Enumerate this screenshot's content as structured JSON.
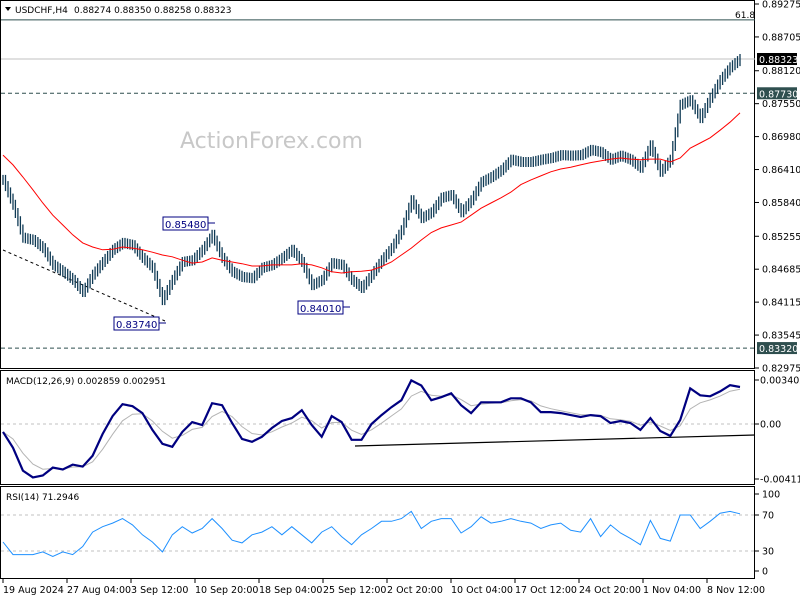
{
  "header": {
    "symbol": "USDCHF,H4",
    "ohlc": "0.88274 0.88350 0.88258 0.88323",
    "dropdown_icon": "triangle-down-icon"
  },
  "watermark": "ActionForex.com",
  "colors": {
    "bars": "#0f3a55",
    "moving_average": "#ff0000",
    "macd_main": "#000080",
    "macd_signal": "#b4b4b4",
    "rsi": "#1e90ff",
    "label_dark": "#2f4f4f",
    "label_current": "#000000"
  },
  "chart_data": [
    {
      "type": "ohlc",
      "title": "USDCHF,H4",
      "x_tick_labels": [
        "19 Aug 2024",
        "27 Aug 04:00",
        "3 Sep 12:00",
        "10 Sep 20:00",
        "18 Sep 04:00",
        "25 Sep 12:00",
        "2 Oct 20:00",
        "10 Oct 04:00",
        "17 Oct 12:00",
        "24 Oct 20:00",
        "1 Nov 04:00",
        "8 Nov 12:00"
      ],
      "y_tick_labels": [
        "0.89275",
        "0.88705",
        "0.88120",
        "0.87550",
        "0.86980",
        "0.86410",
        "0.85840",
        "0.85255",
        "0.84685",
        "0.84115",
        "0.83545",
        "0.82975"
      ],
      "ylim": [
        0.82975,
        0.89275
      ],
      "close": [
        0.8623,
        0.858,
        0.8523,
        0.8519,
        0.8505,
        0.8476,
        0.8464,
        0.845,
        0.8429,
        0.8459,
        0.8481,
        0.8502,
        0.8514,
        0.851,
        0.8488,
        0.8471,
        0.8415,
        0.845,
        0.8481,
        0.8484,
        0.8502,
        0.8528,
        0.8488,
        0.8464,
        0.8455,
        0.8453,
        0.8471,
        0.8476,
        0.8488,
        0.8502,
        0.8481,
        0.8441,
        0.845,
        0.8479,
        0.8476,
        0.845,
        0.8436,
        0.8459,
        0.8484,
        0.8505,
        0.8536,
        0.8588,
        0.8557,
        0.8567,
        0.8592,
        0.8597,
        0.8567,
        0.8588,
        0.8619,
        0.8628,
        0.864,
        0.8658,
        0.8654,
        0.8654,
        0.8658,
        0.8661,
        0.8666,
        0.8665,
        0.8666,
        0.8675,
        0.8671,
        0.8658,
        0.8665,
        0.8658,
        0.8644,
        0.8683,
        0.8637,
        0.8658,
        0.8753,
        0.8761,
        0.873,
        0.8765,
        0.8796,
        0.8818,
        0.88323
      ],
      "moving_average": [
        0.8666,
        0.8649,
        0.8628,
        0.8606,
        0.8583,
        0.8562,
        0.8545,
        0.8528,
        0.8514,
        0.8507,
        0.8502,
        0.8503,
        0.8507,
        0.8505,
        0.8502,
        0.8498,
        0.8493,
        0.849,
        0.8484,
        0.8479,
        0.8481,
        0.8488,
        0.8484,
        0.8481,
        0.8478,
        0.8474,
        0.8474,
        0.8476,
        0.8476,
        0.8476,
        0.8478,
        0.8476,
        0.8471,
        0.8464,
        0.8462,
        0.8464,
        0.8465,
        0.8467,
        0.8473,
        0.8481,
        0.8493,
        0.8505,
        0.8519,
        0.8532,
        0.854,
        0.8545,
        0.855,
        0.8562,
        0.8574,
        0.8583,
        0.8592,
        0.8602,
        0.8615,
        0.8623,
        0.863,
        0.8637,
        0.8642,
        0.8645,
        0.8649,
        0.8653,
        0.8656,
        0.8659,
        0.8661,
        0.8659,
        0.8658,
        0.8659,
        0.8659,
        0.8654,
        0.8661,
        0.8678,
        0.8687,
        0.8696,
        0.8709,
        0.8723,
        0.8739
      ],
      "price_labels": {
        "current": "0.88323",
        "resistance": "0.87730",
        "support": "0.83320",
        "fib": "61.8"
      },
      "levels": {
        "current": 0.88323,
        "resistance": 0.8773,
        "support": 0.8332,
        "fib": 0.89
      },
      "annotations": [
        {
          "text": "0.85480",
          "value": 0.8548
        },
        {
          "text": "0.83740",
          "value": 0.8374
        },
        {
          "text": "0.84010",
          "value": 0.8401
        }
      ]
    },
    {
      "type": "line",
      "title": "MACD(12,26,9) 0.002859 0.002951",
      "y_tick_labels": [
        "0.003402",
        "0.00",
        "-0.00411"
      ],
      "ylim": [
        -0.00411,
        0.0041
      ],
      "macd": [
        -0.00061,
        -0.00184,
        -0.0036,
        -0.00413,
        -0.00398,
        -0.00337,
        -0.00352,
        -0.00314,
        -0.00329,
        -0.00245,
        -0.00077,
        0.00061,
        0.00153,
        0.00138,
        0.00084,
        -0.00046,
        -0.00153,
        -0.00176,
        -0.00061,
        0.00015,
        -8e-05,
        0.00161,
        0.00145,
        8e-05,
        -0.00115,
        -0.00138,
        -0.00099,
        -0.00031,
        0.00023,
        0.00046,
        0.00107,
        -8e-05,
        -0.00099,
        0.00061,
        0.00015,
        -0.00122,
        -0.00122,
        0,
        0.00069,
        0.0013,
        0.00184,
        0.00337,
        0.00298,
        0.00184,
        0.00207,
        0.00237,
        0.00145,
        0.00084,
        0.00168,
        0.00168,
        0.00168,
        0.00199,
        0.00199,
        0.00168,
        0.00092,
        0.00092,
        0.00084,
        0.00069,
        0.00054,
        0.00069,
        0.00061,
        8e-05,
        0.00023,
        8e-05,
        -0.00046,
        0.00046,
        -0.00054,
        -0.00092,
        0.00031,
        0.00275,
        0.00222,
        0.00214,
        0.00252,
        0.003,
        0.002859
      ]
    },
    {
      "type": "line",
      "title": "RSI(14) 71.2946",
      "y_tick_labels": [
        "100",
        "70",
        "30",
        "0"
      ],
      "ylim": [
        0,
        100
      ],
      "levels": [
        70,
        30
      ],
      "rsi": [
        40,
        26,
        26,
        26,
        29,
        24,
        29,
        26,
        35,
        51,
        57,
        61,
        66,
        59,
        48,
        40,
        29,
        48,
        57,
        50,
        55,
        66,
        55,
        42,
        39,
        48,
        51,
        57,
        48,
        57,
        48,
        39,
        51,
        57,
        46,
        37,
        48,
        55,
        63,
        63,
        66,
        74,
        55,
        63,
        66,
        66,
        50,
        57,
        68,
        61,
        63,
        66,
        63,
        61,
        55,
        59,
        61,
        53,
        51,
        66,
        46,
        59,
        50,
        44,
        37,
        64,
        44,
        41,
        70,
        70,
        55,
        63,
        72,
        74,
        71.2946
      ]
    }
  ]
}
